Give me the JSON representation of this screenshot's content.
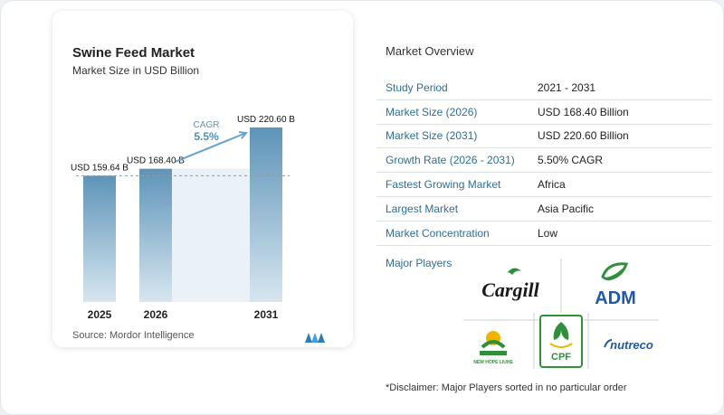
{
  "chart_card": {
    "title": "Swine Feed Market",
    "subtitle": "Market Size in USD Billion",
    "source": "Source:  Mordor Intelligence",
    "source_logo": "mordor-intelligence-logo"
  },
  "chart_data": {
    "type": "bar",
    "title": "Swine Feed Market",
    "subtitle": "Market Size in USD Billion",
    "categories": [
      "2025",
      "2026",
      "2031"
    ],
    "values": [
      159.64,
      168.4,
      220.6
    ],
    "data_labels": [
      "USD 159.64 B",
      "USD 168.40 B",
      "USD 220.60 B"
    ],
    "ylim": [
      0,
      240
    ],
    "reference_line_value": 159.64,
    "cagr_label": "CAGR",
    "cagr_value": "5.5%",
    "grid": false,
    "legend": "none",
    "colors": {
      "bar": "#5e94b8",
      "bar_fade": "#d7e6f0",
      "growth_band": "#eaf2f8",
      "arrow": "#6aa3c9",
      "cagr_text": "#4f8fb8"
    }
  },
  "overview": {
    "title": "Market Overview",
    "rows": [
      {
        "label": "Study Period",
        "value": "2021 - 2031"
      },
      {
        "label": "Market Size (2026)",
        "value": "USD 168.40 Billion"
      },
      {
        "label": "Market Size (2031)",
        "value": "USD 220.60 Billion"
      },
      {
        "label": "Growth Rate (2026 - 2031)",
        "value": "5.50% CAGR"
      },
      {
        "label": "Fastest Growing Market",
        "value": "Africa"
      },
      {
        "label": "Largest Market",
        "value": "Asia Pacific"
      },
      {
        "label": "Market Concentration",
        "value": "Low"
      }
    ],
    "players_label": "Major Players",
    "players": [
      {
        "name": "Cargill",
        "logo": "cargill-logo",
        "color": "#1a1a1a"
      },
      {
        "name": "ADM",
        "logo": "adm-logo",
        "color": "#1e5aa8"
      },
      {
        "name": "NEW HOPE LIUHE",
        "logo": "new-hope-liuhe-logo",
        "color": "#2f8f3a"
      },
      {
        "name": "CPF",
        "logo": "cpf-logo",
        "color": "#2f8f3a"
      },
      {
        "name": "nutreco",
        "logo": "nutreco-logo",
        "color": "#1e5aa8"
      }
    ],
    "disclaimer": "*Disclaimer: Major Players sorted in no particular order"
  }
}
